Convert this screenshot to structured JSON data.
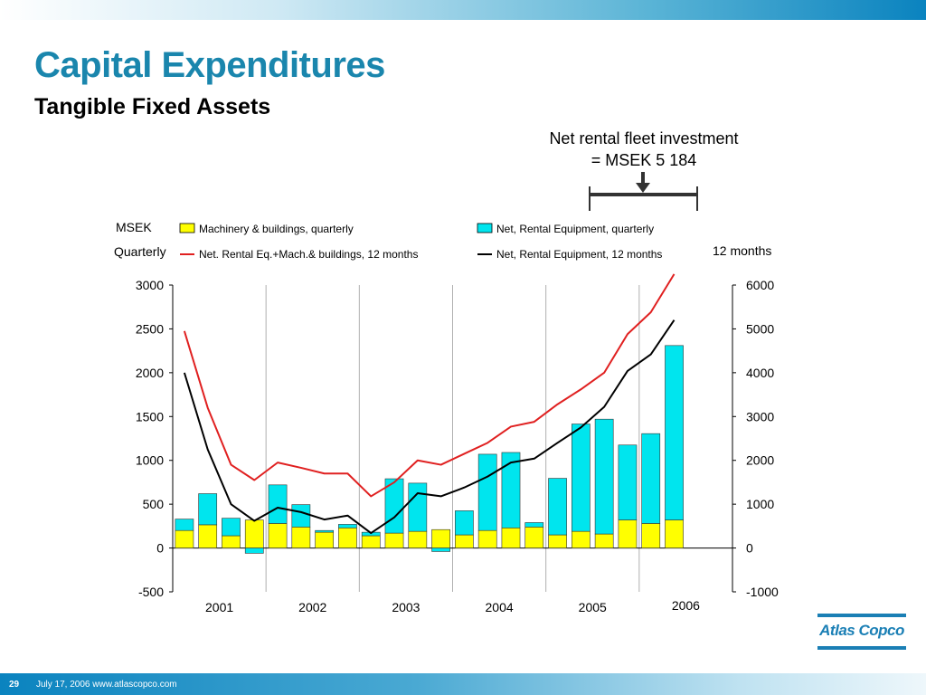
{
  "slide": {
    "title": "Capital Expenditures",
    "subtitle": "Tangible Fixed Assets",
    "callout_line1": "Net rental fleet investment",
    "callout_line2": "=  MSEK 5 184",
    "page_number": "29",
    "footer_text": "July 17, 2006  www.atlascopco.com",
    "logo_text": "Atlas Copco",
    "accent_color": "#1a86ad"
  },
  "chart_data": {
    "type": "bar",
    "left_axis_label_line1": "MSEK",
    "left_axis_label_line2": "Quarterly",
    "right_axis_label": "12 months",
    "ylim_left": [
      -500,
      3000
    ],
    "ylim_right": [
      -1000,
      6000
    ],
    "yticks_left": [
      "3000",
      "2500",
      "2000",
      "1500",
      "1000",
      "500",
      "0",
      "-500"
    ],
    "yticks_right": [
      "6000",
      "5000",
      "4000",
      "3000",
      "2000",
      "1000",
      "0",
      "-1000"
    ],
    "years": [
      "2001",
      "2002",
      "2003",
      "2004",
      "2005",
      "2006"
    ],
    "legend_placement": "top",
    "series": [
      {
        "name": "Machinery & buildings, quarterly",
        "kind": "bar",
        "color": "#ffff00",
        "values": [
          200,
          265,
          140,
          320,
          280,
          240,
          180,
          230,
          140,
          170,
          190,
          210,
          150,
          200,
          230,
          240,
          150,
          190,
          160,
          320,
          280,
          320
        ]
      },
      {
        "name": "Net, Rental Equipment, quarterly",
        "kind": "bar",
        "color": "#00e5ee",
        "values": [
          130,
          355,
          200,
          -60,
          440,
          255,
          20,
          40,
          40,
          620,
          550,
          -40,
          275,
          870,
          860,
          50,
          645,
          1225,
          1310,
          855,
          1025,
          1990
        ]
      },
      {
        "name": "Net. Rental Eq.+Mach.& buildings, 12 months",
        "kind": "line",
        "color": "#e02020",
        "axis": "right",
        "values": [
          4950,
          3200,
          1900,
          1550,
          1950,
          1830,
          1700,
          1700,
          1180,
          1500,
          2000,
          1900,
          2150,
          2400,
          2770,
          2880,
          3280,
          3620,
          4000,
          4880,
          5380,
          6250
        ]
      },
      {
        "name": "Net, Rental Equipment, 12 months",
        "kind": "line",
        "color": "#000000",
        "axis": "right",
        "values": [
          4000,
          2250,
          1000,
          620,
          920,
          820,
          650,
          740,
          340,
          700,
          1250,
          1180,
          1380,
          1630,
          1950,
          2040,
          2400,
          2750,
          3220,
          4040,
          4420,
          5200
        ]
      }
    ],
    "grid": "vertical separators between years"
  }
}
